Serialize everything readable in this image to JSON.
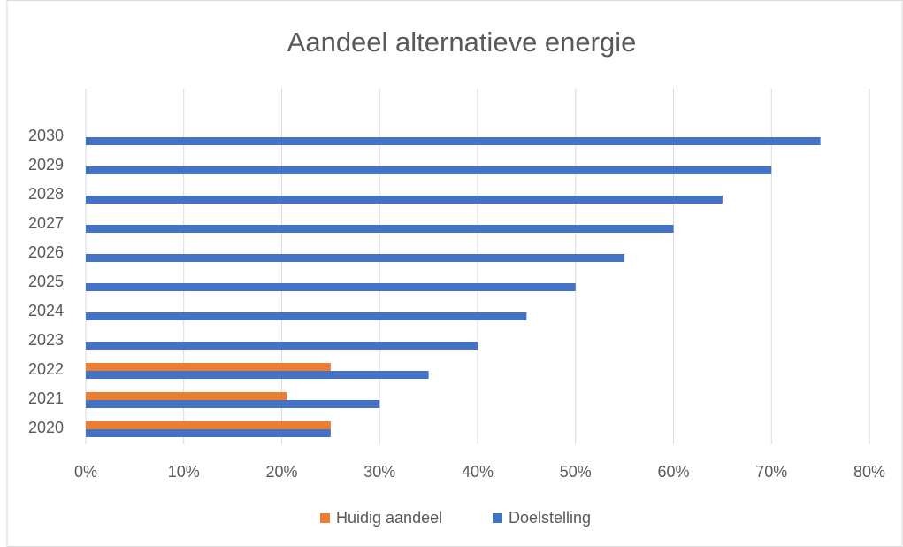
{
  "chart_data": {
    "type": "barh",
    "title": "Aandeel alternatieve energie",
    "categories": [
      "2020",
      "2021",
      "2022",
      "2023",
      "2024",
      "2025",
      "2026",
      "2027",
      "2028",
      "2029",
      "2030"
    ],
    "series": [
      {
        "name": "Huidig aandeel",
        "color": "#ed7d31",
        "values": [
          25,
          20.5,
          25,
          null,
          null,
          null,
          null,
          null,
          null,
          null,
          null
        ]
      },
      {
        "name": "Doelstelling",
        "color": "#4472c4",
        "values": [
          25,
          30,
          35,
          40,
          45,
          50,
          55,
          60,
          65,
          70,
          75
        ]
      }
    ],
    "xlim": [
      0,
      80
    ],
    "xticks": [
      {
        "value": 0,
        "label": "0%"
      },
      {
        "value": 10,
        "label": "10%"
      },
      {
        "value": 20,
        "label": "20%"
      },
      {
        "value": 30,
        "label": "30%"
      },
      {
        "value": 40,
        "label": "40%"
      },
      {
        "value": 50,
        "label": "50%"
      },
      {
        "value": 60,
        "label": "60%"
      },
      {
        "value": 70,
        "label": "70%"
      },
      {
        "value": 80,
        "label": "80%"
      }
    ],
    "grid": true,
    "legend": "bottom"
  }
}
